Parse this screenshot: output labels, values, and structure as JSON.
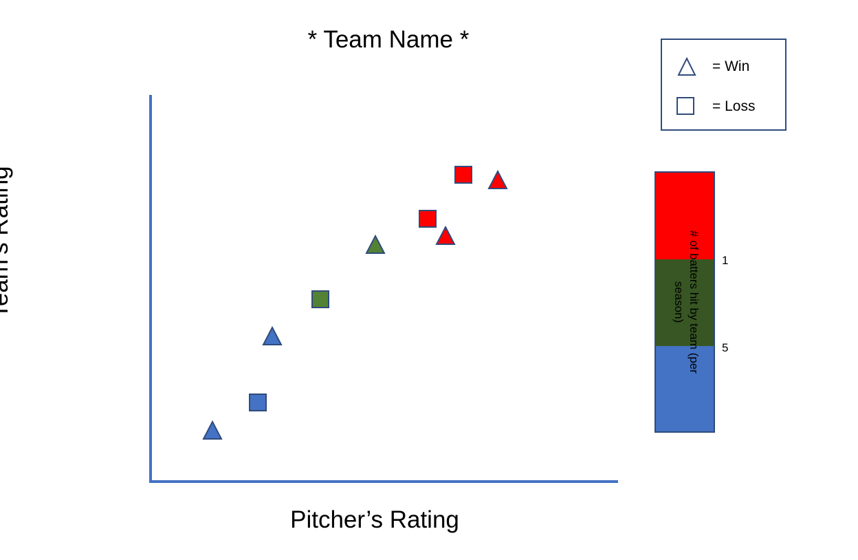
{
  "chart_data": {
    "type": "scatter",
    "title": "* Team Name *",
    "xlabel": "Pitcher’s Rating",
    "ylabel": "Team’s Rating",
    "xlim": [
      0,
      10
    ],
    "ylim": [
      0,
      10
    ],
    "grid": false,
    "show_ticks": false,
    "points": [
      {
        "x": 1.3,
        "y": 1.3,
        "marker": "triangle",
        "outcome": "Win",
        "color": "#4472c4"
      },
      {
        "x": 2.3,
        "y": 2.1,
        "marker": "square",
        "outcome": "Loss",
        "color": "#4472c4"
      },
      {
        "x": 2.6,
        "y": 3.7,
        "marker": "triangle",
        "outcome": "Win",
        "color": "#4472c4"
      },
      {
        "x": 3.6,
        "y": 4.7,
        "marker": "square",
        "outcome": "Loss",
        "color": "#548235"
      },
      {
        "x": 4.8,
        "y": 6.1,
        "marker": "triangle",
        "outcome": "Win",
        "color": "#548235"
      },
      {
        "x": 5.9,
        "y": 6.9,
        "marker": "triangle",
        "outcome": "Win",
        "color": "#ff0000"
      },
      {
        "x": 5.9,
        "y": 6.9,
        "marker": "square",
        "outcome": "Loss",
        "color": "#ff0000"
      },
      {
        "x": 6.7,
        "y": 7.8,
        "marker": "square",
        "outcome": "Loss",
        "color": "#ff0000"
      },
      {
        "x": 7.4,
        "y": 7.7,
        "marker": "triangle",
        "outcome": "Win",
        "color": "#ff0000"
      }
    ],
    "legend": {
      "placement": "top-right",
      "entries": [
        {
          "marker": "triangle",
          "label": "= Win"
        },
        {
          "marker": "square",
          "label": "= Loss"
        }
      ]
    },
    "colorbar": {
      "label": "# of batters hit by team (per season)",
      "segments": [
        "#ff0000",
        "#375623",
        "#4472c4"
      ],
      "tick_labels": [
        "1",
        "5"
      ]
    },
    "axis_color": "#4472c4",
    "marker_edge_color": "#2f4b7c"
  }
}
